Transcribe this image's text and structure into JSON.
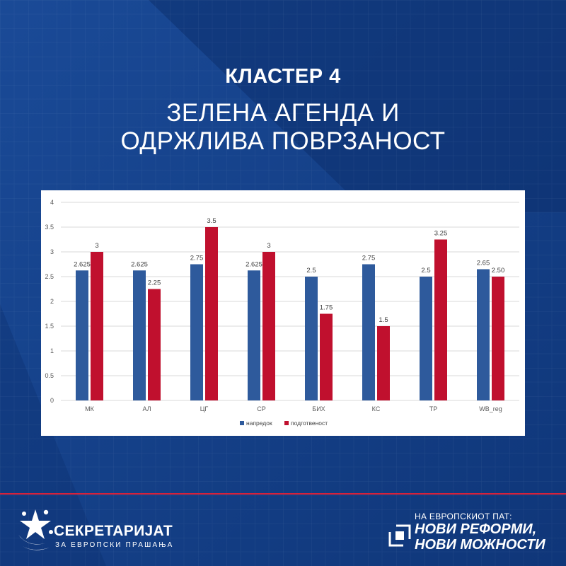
{
  "header": {
    "cluster_title": "КЛАСТЕР 4",
    "subtitle_line1": "ЗЕЛЕНА АГЕНДА И",
    "subtitle_line2": "ОДРЖЛИВА ПОВРЗАНОСТ"
  },
  "chart_data": {
    "type": "bar",
    "categories": [
      "МК",
      "АЛ",
      "ЦГ",
      "СР",
      "БИХ",
      "КС",
      "ТР",
      "WB_reg"
    ],
    "series": [
      {
        "name": "напредок",
        "color": "#2e5a9c",
        "values": [
          2.625,
          2.625,
          2.75,
          2.625,
          2.5,
          2.75,
          2.5,
          2.65
        ],
        "labels": [
          "2.625",
          "2.625",
          "2.75",
          "2.625",
          "2.5",
          "2.75",
          "2.5",
          "2.65"
        ]
      },
      {
        "name": "подготвеност",
        "color": "#c0102e",
        "values": [
          3,
          2.25,
          3.5,
          3,
          1.75,
          1.5,
          3.25,
          2.5
        ],
        "labels": [
          "3",
          "2.25",
          "3.5",
          "3",
          "1.75",
          "1.5",
          "3.25",
          "2.50"
        ]
      }
    ],
    "ylim": [
      0,
      4
    ],
    "yticks": [
      "0",
      "0.5",
      "1",
      "1.5",
      "2",
      "2.5",
      "3",
      "3.5",
      "4"
    ],
    "grid": true,
    "legend": "bottom-center"
  },
  "footer": {
    "logo_name": "СЕКРЕТАРИЈАТ",
    "logo_sub": "ЗА ЕВРОПСКИ ПРАШАЊА",
    "slogan_small": "НА ЕВРОПСКИОТ ПАТ:",
    "slogan_line1": "НОВИ РЕФОРМИ,",
    "slogan_line2": "НОВИ МОЖНОСТИ",
    "accent_color": "#d6223b"
  }
}
